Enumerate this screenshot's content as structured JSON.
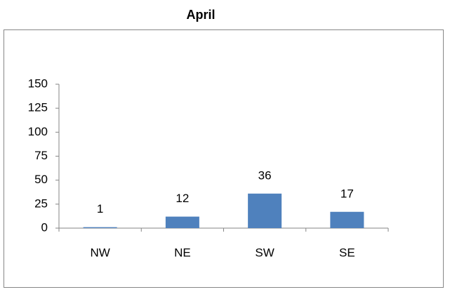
{
  "chart_data": {
    "type": "bar",
    "title": "April",
    "categories": [
      "NW",
      "NE",
      "SW",
      "SE"
    ],
    "values": [
      1,
      12,
      36,
      17
    ],
    "color": "#4f81bd",
    "ylim": [
      0,
      150
    ],
    "yticks": [
      0,
      25,
      50,
      75,
      100,
      125,
      150
    ],
    "grid": false,
    "data_labels": true
  }
}
